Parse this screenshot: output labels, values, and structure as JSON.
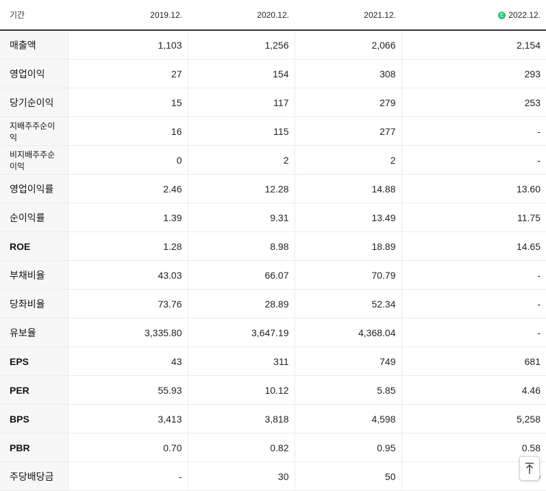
{
  "header": {
    "period_label": "기간",
    "columns": [
      "2019.12.",
      "2020.12.",
      "2021.12.",
      "2022.12."
    ],
    "estimate_marker": "E"
  },
  "rows": [
    {
      "label": "매출액",
      "values": [
        "1,103",
        "1,256",
        "2,066",
        "2,154"
      ]
    },
    {
      "label": "영업이익",
      "values": [
        "27",
        "154",
        "308",
        "293"
      ]
    },
    {
      "label": "당기순이익",
      "values": [
        "15",
        "117",
        "279",
        "253"
      ]
    },
    {
      "label": "지배주주순이익",
      "values": [
        "16",
        "115",
        "277",
        "-"
      ]
    },
    {
      "label": "비지배주주순이익",
      "values": [
        "0",
        "2",
        "2",
        "-"
      ]
    },
    {
      "label": "영업이익률",
      "values": [
        "2.46",
        "12.28",
        "14.88",
        "13.60"
      ]
    },
    {
      "label": "순이익률",
      "values": [
        "1.39",
        "9.31",
        "13.49",
        "11.75"
      ]
    },
    {
      "label": "ROE",
      "values": [
        "1.28",
        "8.98",
        "18.89",
        "14.65"
      ]
    },
    {
      "label": "부채비율",
      "values": [
        "43.03",
        "66.07",
        "70.79",
        "-"
      ]
    },
    {
      "label": "당좌비율",
      "values": [
        "73.76",
        "28.89",
        "52.34",
        "-"
      ]
    },
    {
      "label": "유보율",
      "values": [
        "3,335.80",
        "3,647.19",
        "4,368.04",
        "-"
      ]
    },
    {
      "label": "EPS",
      "values": [
        "43",
        "311",
        "749",
        "681"
      ]
    },
    {
      "label": "PER",
      "values": [
        "55.93",
        "10.12",
        "5.85",
        "4.46"
      ]
    },
    {
      "label": "BPS",
      "values": [
        "3,413",
        "3,818",
        "4,598",
        "5,258"
      ]
    },
    {
      "label": "PBR",
      "values": [
        "0.70",
        "0.82",
        "0.95",
        "0.58"
      ]
    },
    {
      "label": "주당배당금",
      "values": [
        "-",
        "30",
        "50",
        "0"
      ]
    }
  ],
  "scroll_top_icon": "arrow-up-icon"
}
